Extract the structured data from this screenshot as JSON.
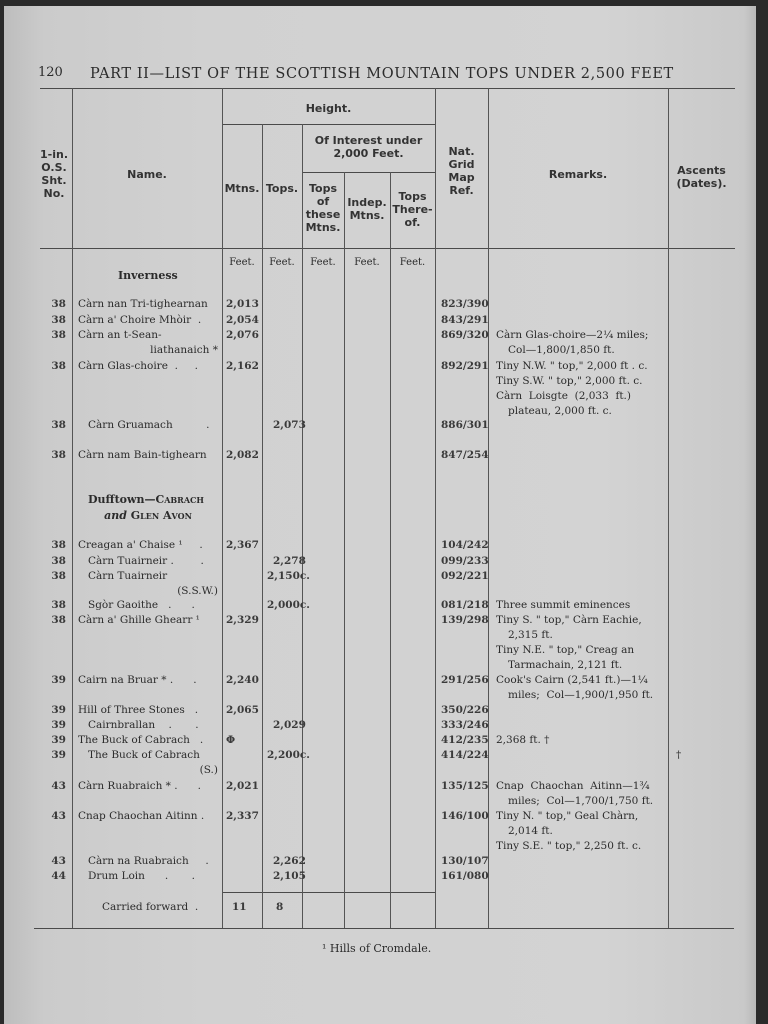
{
  "page": {
    "number": "120",
    "running_head": "PART II—LIST OF THE SCOTTISH MOUNTAIN TOPS UNDER 2,500 FEET",
    "footnote": "¹ Hills of Cromdale."
  },
  "table": {
    "headers": {
      "sheet": "1-in.\nO.S.\nSht.\nNo.",
      "name": "Name.",
      "height": "Height.",
      "mtns": "Mtns.",
      "tops": "Tops.",
      "of_interest": "Of Interest under\n2,000 Feet.",
      "tops_of_these": "Tops\nof\nthese\nMtns.",
      "indep": "Indep.\nMtns.",
      "tops_thereof": "Tops\nThere-\nof.",
      "grid": "Nat.\nGrid\nMap\nRef.",
      "remarks": "Remarks.",
      "ascents": "Ascents\n(Dates)."
    },
    "units": [
      "Feet.",
      "Feet.",
      "Feet.",
      "Feet.",
      "Feet."
    ],
    "sections": [
      {
        "title": "Inverness"
      },
      {
        "title_main": "Dufftown—",
        "title_sc": "Cabrach",
        "title_and": "and",
        "title_sc2": "Glen Avon"
      }
    ],
    "rows": [
      {
        "sht": "38",
        "name": "Càrn nan Tri-tighearnan",
        "mtns": "2,013",
        "grid": "823/390"
      },
      {
        "sht": "38",
        "name": "Càrn a' Choire Mhòir  .",
        "mtns": "2,054",
        "grid": "843/291"
      },
      {
        "sht": "38",
        "name": "Càrn an t-Sean-",
        "name_cont": "liathanaich *",
        "mtns": "2,076",
        "grid": "869/320",
        "remarks": [
          [
            "Càrn Glas-choire—2¼ miles;",
            "Col—1,800/1,850 ft."
          ]
        ]
      },
      {
        "sht": "38",
        "name": "Càrn Glas-choire  .     .",
        "mtns": "2,162",
        "grid": "892/291",
        "remarks": [
          [
            "Tiny N.W. \" top,\" 2,000 ft . c."
          ],
          [
            "Tiny S.W. \" top,\" 2,000 ft. c."
          ],
          [
            "Càrn  Loisgte  (2,033  ft.)",
            "plateau, 2,000 ft. c."
          ]
        ]
      },
      {
        "sht": "38",
        "name": "Càrn Gruamach          .",
        "indent": true,
        "tops": "2,073",
        "grid": "886/301"
      },
      {
        "sht": "38",
        "name": "Càrn nam Bain-tighearn",
        "mtns": "2,082",
        "grid": "847/254"
      },
      {
        "sht": "38",
        "name": "Creagan a' Chaise ¹     .",
        "mtns": "2,367",
        "grid": "104/242"
      },
      {
        "sht": "38",
        "name": "Càrn Tuairneir .        .",
        "indent": true,
        "tops": "2,278",
        "grid": "099/233"
      },
      {
        "sht": "38",
        "name": "Càrn Tuairneir",
        "indent": true,
        "name_cont": "(S.S.W.)",
        "tops": "2,150c.",
        "grid": "092/221"
      },
      {
        "sht": "38",
        "name": "Sgòr Gaoithe   .      .",
        "indent": true,
        "tops": "2,000c.",
        "grid": "081/218",
        "remarks": [
          [
            "Three summit eminences"
          ]
        ]
      },
      {
        "sht": "38",
        "name": "Càrn a' Ghille Ghearr ¹",
        "mtns": "2,329",
        "grid": "139/298",
        "remarks": [
          [
            "Tiny S. \" top,\" Càrn Eachie,",
            "2,315 ft."
          ],
          [
            "Tiny N.E. \" top,\" Creag an",
            "Tarmachain, 2,121 ft."
          ]
        ]
      },
      {
        "sht": "39",
        "name": "Cairn na Bruar * .      .",
        "mtns": "2,240",
        "grid": "291/256",
        "remarks": [
          [
            "Cook's Cairn (2,541 ft.)—1¼",
            "miles;  Col—1,900/1,950 ft."
          ]
        ]
      },
      {
        "sht": "39",
        "name": "Hill of Three Stones   .",
        "mtns": "2,065",
        "grid": "350/226"
      },
      {
        "sht": "39",
        "name": "Cairnbrallan    .       .",
        "indent": true,
        "tops": "2,029",
        "grid": "333/246"
      },
      {
        "sht": "39",
        "name": "The Buck of Cabrach   .",
        "mtns": "Φ",
        "grid": "412/235",
        "remarks": [
          [
            "2,368 ft. †"
          ]
        ]
      },
      {
        "sht": "39",
        "name": "The Buck of Cabrach",
        "indent": true,
        "name_cont": "(S.)",
        "tops": "2,200c.",
        "grid": "414/224",
        "ascents": "†"
      },
      {
        "sht": "43",
        "name": "Càrn Ruabraich * .      .",
        "mtns": "2,021",
        "grid": "135/125",
        "remarks": [
          [
            "Cnap  Chaochan  Aitinn—1¾",
            "miles;  Col—1,700/1,750 ft."
          ]
        ]
      },
      {
        "sht": "43",
        "name": "Cnap Chaochan Aitinn .",
        "mtns": "2,337",
        "grid": "146/100",
        "remarks": [
          [
            "Tiny N. \" top,\" Geal Chàrn,",
            "2,014 ft."
          ],
          [
            "Tiny S.E. \" top,\" 2,250 ft. c."
          ]
        ]
      },
      {
        "sht": "43",
        "name": "Càrn na Ruabraich     .",
        "indent": true,
        "tops": "2,262",
        "grid": "130/107"
      },
      {
        "sht": "44",
        "name": "Drum Loin      .       .",
        "indent": true,
        "tops": "2,105",
        "grid": "161/080"
      }
    ],
    "total": {
      "label": "Carried forward  .",
      "mtns": "11",
      "tops": "8"
    }
  }
}
